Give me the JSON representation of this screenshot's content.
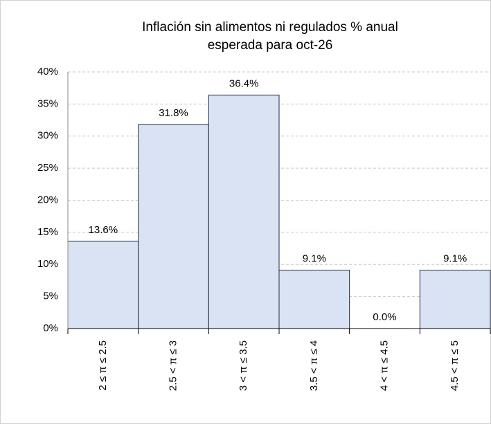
{
  "chart_data": {
    "type": "bar",
    "title": [
      "Inflación sin alimentos ni regulados % anual",
      "esperada para oct-26"
    ],
    "categories": [
      "2 ≤  π  ≤ 2.5",
      "2.5 <  π  ≤ 3",
      "3 <  π  ≤ 3.5",
      "3.5 <  π  ≤ 4",
      "4 <  π  ≤ 4.5",
      "4.5 <  π  ≤ 5"
    ],
    "values": [
      13.6,
      31.8,
      36.4,
      9.1,
      0.0,
      9.1
    ],
    "value_labels": [
      "13.6%",
      "31.8%",
      "36.4%",
      "9.1%",
      "0.0%",
      "9.1%"
    ],
    "color": "#dae3f3",
    "edge_color": "#1f2a44",
    "ylim": [
      0,
      40
    ],
    "yticks": [
      {
        "value": 0,
        "label": "0%"
      },
      {
        "value": 5,
        "label": "5%"
      },
      {
        "value": 10,
        "label": "10%"
      },
      {
        "value": 15,
        "label": "15%"
      },
      {
        "value": 20,
        "label": "20%"
      },
      {
        "value": 25,
        "label": "25%"
      },
      {
        "value": 30,
        "label": "30%"
      },
      {
        "value": 35,
        "label": "35%"
      },
      {
        "value": 40,
        "label": "40%"
      }
    ],
    "grid": true
  }
}
